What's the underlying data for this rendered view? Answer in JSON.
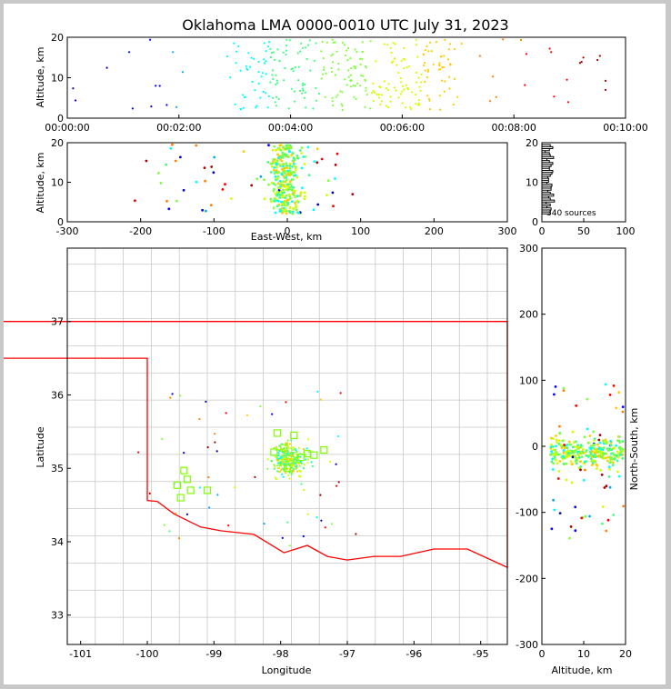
{
  "chart_data": [
    {
      "id": "altitude-time",
      "type": "scatter",
      "title": "Oklahoma LMA 0000-0010 UTC July 31, 2023",
      "xlabel": "",
      "ylabel": "Altitude, km",
      "xlim_seconds": [
        0,
        600
      ],
      "ylim": [
        0,
        20
      ],
      "xtick_labels": [
        "00:00:00",
        "00:02:00",
        "00:04:00",
        "00:06:00",
        "00:08:00",
        "00:10:00"
      ],
      "yticks": [
        0,
        10,
        20
      ],
      "color_encoding": "time",
      "colormap": [
        "#0000aa",
        "#0000ff",
        "#00aaff",
        "#00ffff",
        "#40ff80",
        "#80ff40",
        "#d0ff00",
        "#ffcc00",
        "#ff8000",
        "#ff0000",
        "#aa0000"
      ]
    },
    {
      "id": "altitude-ew",
      "type": "scatter",
      "xlabel": "East-West, km",
      "ylabel": "Altitude, km",
      "xlim": [
        -300,
        300
      ],
      "ylim": [
        0,
        20
      ],
      "xticks": [
        -300,
        -200,
        -100,
        0,
        100,
        200,
        300
      ],
      "yticks": [
        0,
        10,
        20
      ]
    },
    {
      "id": "altitude-histogram",
      "type": "line",
      "xlim": [
        0,
        100
      ],
      "ylim": [
        0,
        20
      ],
      "xticks": [
        0,
        50,
        100
      ],
      "yticks": [
        0,
        10,
        20
      ],
      "annotation": "340 sources"
    },
    {
      "id": "plan-view",
      "type": "scatter",
      "xlabel": "Longitude",
      "ylabel": "Latitude",
      "xlim": [
        -101.2,
        -94.6
      ],
      "ylim": [
        32.6,
        38.0
      ],
      "xticks": [
        -101,
        -100,
        -99,
        -98,
        -97,
        -96,
        -95
      ],
      "yticks": [
        33,
        34,
        35,
        36,
        37
      ],
      "stations": [
        [
          -99.45,
          34.97
        ],
        [
          -99.5,
          34.6
        ],
        [
          -99.35,
          34.7
        ],
        [
          -99.1,
          34.7
        ],
        [
          -99.55,
          34.77
        ],
        [
          -99.4,
          34.85
        ],
        [
          -98.05,
          35.48
        ],
        [
          -97.8,
          35.45
        ],
        [
          -98.1,
          35.22
        ],
        [
          -97.95,
          35.28
        ],
        [
          -97.7,
          35.15
        ],
        [
          -97.5,
          35.18
        ],
        [
          -97.35,
          35.25
        ],
        [
          -97.9,
          35.0
        ],
        [
          -97.6,
          35.2
        ]
      ]
    },
    {
      "id": "altitude-ns",
      "type": "scatter",
      "xlabel": "Altitude, km",
      "ylabel": "North-South, km",
      "xlim": [
        0,
        20
      ],
      "ylim": [
        -300,
        300
      ],
      "xticks": [
        0,
        10,
        20
      ],
      "yticks": [
        -300,
        -200,
        -100,
        0,
        100,
        200,
        300
      ]
    }
  ],
  "colors": {
    "state_border": "#ff0000",
    "county_lines": "#c8c8c8",
    "station": "#7fff00",
    "background": "#ffffff",
    "frame": "#c8c8c8"
  }
}
